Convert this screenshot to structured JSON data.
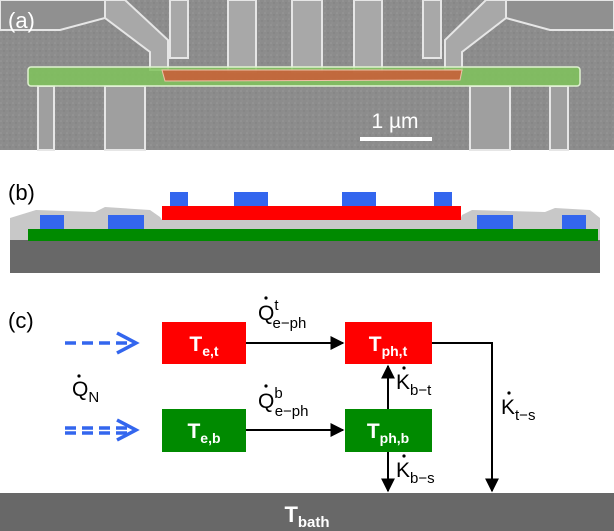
{
  "panels": {
    "a": {
      "label": "(a)",
      "scale_bar": "1 µm"
    },
    "b": {
      "label": "(b)"
    },
    "c": {
      "label": "(c)",
      "heat_input": {
        "main": "Q",
        "sub": "N"
      },
      "nodes": {
        "te_t": {
          "main": "T",
          "sub": "e,t"
        },
        "tph_t": {
          "main": "T",
          "sub": "ph,t"
        },
        "te_b": {
          "main": "T",
          "sub": "e,b"
        },
        "tph_b": {
          "main": "T",
          "sub": "ph,b"
        },
        "bath": {
          "main": "T",
          "sub": "bath"
        }
      },
      "links": {
        "q_top": {
          "main": "Q",
          "sup": "t",
          "sub": "e−ph"
        },
        "q_bottom": {
          "main": "Q",
          "sup": "b",
          "sub": "e−ph"
        },
        "k_bt": {
          "main": "K",
          "sub": "b−t"
        },
        "k_bs": {
          "main": "K",
          "sub": "b−s"
        },
        "k_ts": {
          "main": "K",
          "sub": "t−s"
        }
      }
    }
  },
  "colors": {
    "red": "#ff0000",
    "green": "#008a00",
    "blue": "#3366ee",
    "gray": "#686868",
    "sem_overlay_green": "#7fc35a",
    "sem_overlay_orange": "#c8603a"
  }
}
